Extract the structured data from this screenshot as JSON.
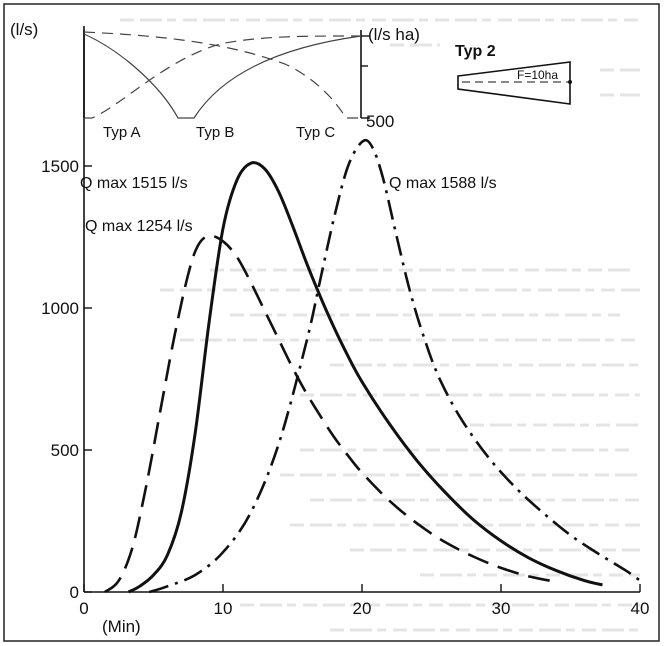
{
  "chart_data": [
    {
      "type": "line",
      "xlabel": "(Min)",
      "ylabel": "(l/s)",
      "xlim": [
        0,
        40
      ],
      "ylim": [
        0,
        1600
      ],
      "x_ticks": [
        0,
        10,
        20,
        30,
        40
      ],
      "x_tick_labels": [
        "0",
        "10",
        "20",
        "30",
        "40"
      ],
      "y_ticks": [
        0,
        500,
        1000,
        1500
      ],
      "y_tick_labels": [
        "0",
        "500",
        "1000",
        "1500"
      ],
      "grid": false,
      "series": [
        {
          "dash": "dashed",
          "annotation": "Q max 1254 l/s",
          "points": [
            [
              1.5,
              0
            ],
            [
              2.5,
              40
            ],
            [
              3.5,
              160
            ],
            [
              4.5,
              380
            ],
            [
              5.5,
              640
            ],
            [
              6.5,
              900
            ],
            [
              7.5,
              1120
            ],
            [
              8.2,
              1220
            ],
            [
              9,
              1254
            ],
            [
              10,
              1235
            ],
            [
              11,
              1180
            ],
            [
              12,
              1090
            ],
            [
              13,
              990
            ],
            [
              14,
              890
            ],
            [
              15,
              790
            ],
            [
              16,
              700
            ],
            [
              17,
              620
            ],
            [
              18,
              545
            ],
            [
              19,
              480
            ],
            [
              20,
              420
            ],
            [
              22,
              320
            ],
            [
              24,
              240
            ],
            [
              26,
              175
            ],
            [
              28,
              125
            ],
            [
              30,
              85
            ],
            [
              32,
              55
            ],
            [
              33.5,
              40
            ]
          ]
        },
        {
          "dash": "solid",
          "annotation": "Q max 1515 l/s",
          "points": [
            [
              3.2,
              0
            ],
            [
              4,
              20
            ],
            [
              5,
              60
            ],
            [
              6,
              130
            ],
            [
              7,
              280
            ],
            [
              8,
              560
            ],
            [
              9,
              950
            ],
            [
              10,
              1280
            ],
            [
              11,
              1450
            ],
            [
              12,
              1510
            ],
            [
              13,
              1490
            ],
            [
              14,
              1410
            ],
            [
              15,
              1290
            ],
            [
              16,
              1160
            ],
            [
              17,
              1040
            ],
            [
              18,
              930
            ],
            [
              19,
              830
            ],
            [
              20,
              740
            ],
            [
              22,
              590
            ],
            [
              24,
              460
            ],
            [
              26,
              350
            ],
            [
              28,
              255
            ],
            [
              30,
              180
            ],
            [
              32,
              120
            ],
            [
              34,
              75
            ],
            [
              36,
              40
            ],
            [
              37.3,
              25
            ]
          ]
        },
        {
          "dash": "dash-dot",
          "annotation": "Q max 1588 l/s",
          "points": [
            [
              4.7,
              0
            ],
            [
              6,
              20
            ],
            [
              8,
              60
            ],
            [
              10,
              140
            ],
            [
              12,
              280
            ],
            [
              14,
              520
            ],
            [
              16,
              880
            ],
            [
              17,
              1100
            ],
            [
              18,
              1320
            ],
            [
              19,
              1500
            ],
            [
              20,
              1585
            ],
            [
              20.7,
              1570
            ],
            [
              21.5,
              1460
            ],
            [
              22.5,
              1250
            ],
            [
              23.5,
              1050
            ],
            [
              24.5,
              890
            ],
            [
              25.5,
              760
            ],
            [
              27,
              620
            ],
            [
              29,
              480
            ],
            [
              31,
              370
            ],
            [
              33,
              280
            ],
            [
              35,
              200
            ],
            [
              37,
              135
            ],
            [
              39,
              75
            ],
            [
              40,
              40
            ]
          ]
        }
      ]
    },
    {
      "type": "line",
      "ylabel_left": "(l/s)",
      "ylabel_right": "(l/s ha)",
      "right_tick_label": "500",
      "series": [
        {
          "name": "Typ A"
        },
        {
          "name": "Typ B"
        },
        {
          "name": "Typ C"
        }
      ]
    }
  ],
  "inset": {
    "title": "Typ 2",
    "area_label": "F=10ha"
  }
}
